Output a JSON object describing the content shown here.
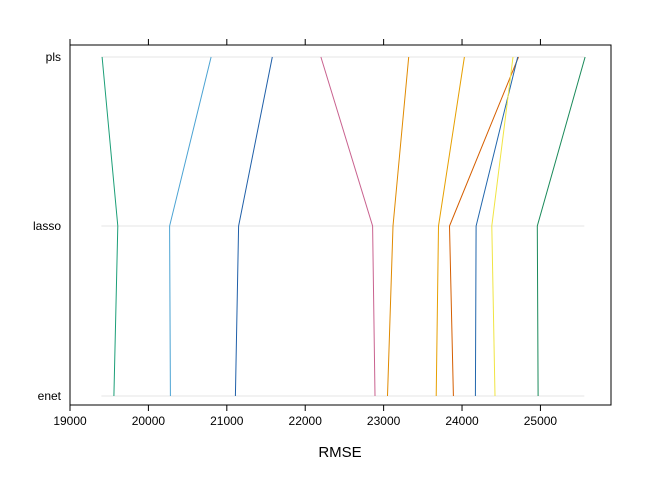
{
  "chart_data": {
    "type": "line",
    "title": "",
    "xlabel": "RMSE",
    "ylabel": "",
    "categories": [
      "enet",
      "lasso",
      "pls"
    ],
    "xlim": [
      19000,
      25900
    ],
    "xticks": [
      19000,
      20000,
      21000,
      22000,
      23000,
      24000,
      25000
    ],
    "grid": "horizontal reference lines at each category",
    "series": [
      {
        "color": "#1b9e77",
        "values": [
          19560,
          19610,
          19410
        ]
      },
      {
        "color": "#4ba3d3",
        "values": [
          20280,
          20270,
          20800
        ]
      },
      {
        "color": "#1f5fa8",
        "values": [
          21110,
          21150,
          21580
        ]
      },
      {
        "color": "#c9628f",
        "values": [
          22890,
          22860,
          22200
        ]
      },
      {
        "color": "#e08a00",
        "values": [
          23050,
          23120,
          23320
        ]
      },
      {
        "color": "#e69f00",
        "values": [
          23670,
          23700,
          24030
        ]
      },
      {
        "color": "#d55e00",
        "values": [
          23890,
          23840,
          24720
        ]
      },
      {
        "color": "#2166ac",
        "values": [
          24170,
          24180,
          24710
        ]
      },
      {
        "color": "#f0e442",
        "values": [
          24420,
          24380,
          24650
        ]
      },
      {
        "color": "#1a8a5a",
        "values": [
          24970,
          24960,
          25570
        ]
      }
    ]
  }
}
